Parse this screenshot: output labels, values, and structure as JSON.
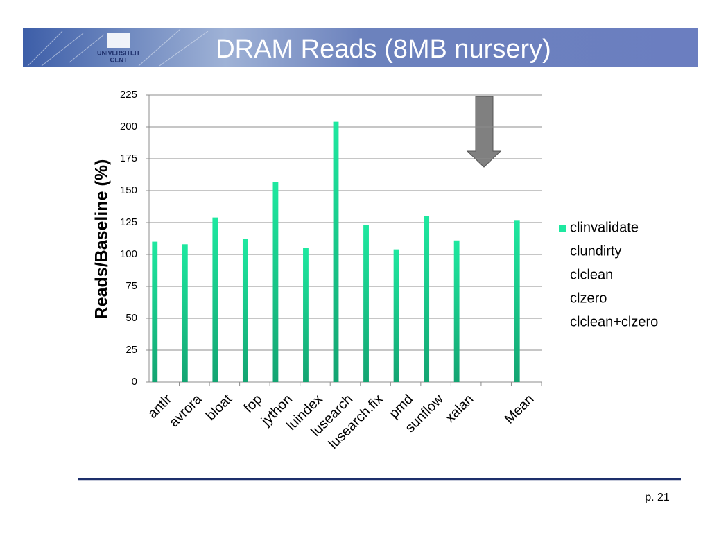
{
  "header": {
    "title": "DRAM Reads (8MB nursery)",
    "logo_line1": "UNIVERSITEIT",
    "logo_line2": "GENT"
  },
  "chart_data": {
    "type": "bar",
    "y_label": "Reads/Baseline (%)",
    "categories": [
      "antlr",
      "avrora",
      "bloat",
      "fop",
      "jython",
      "luindex",
      "lusearch",
      "lusearch.fix",
      "pmd",
      "sunflow",
      "xalan",
      null,
      "Mean"
    ],
    "series": [
      {
        "name": "clinvalidate",
        "color": "#1ee8a0",
        "values": [
          110,
          108,
          129,
          112,
          157,
          105,
          204,
          123,
          104,
          130,
          111,
          null,
          127
        ]
      },
      {
        "name": "clundirty",
        "values": [
          null,
          null,
          null,
          null,
          null,
          null,
          null,
          null,
          null,
          null,
          null,
          null,
          null
        ]
      },
      {
        "name": "clclean",
        "values": [
          null,
          null,
          null,
          null,
          null,
          null,
          null,
          null,
          null,
          null,
          null,
          null,
          null
        ]
      },
      {
        "name": "clzero",
        "values": [
          null,
          null,
          null,
          null,
          null,
          null,
          null,
          null,
          null,
          null,
          null,
          null,
          null
        ]
      },
      {
        "name": "clclean+clzero",
        "values": [
          null,
          null,
          null,
          null,
          null,
          null,
          null,
          null,
          null,
          null,
          null,
          null,
          null
        ]
      }
    ],
    "ylim": [
      0,
      225
    ],
    "yticks": [
      0,
      25,
      50,
      75,
      100,
      125,
      150,
      175,
      200,
      225
    ],
    "grid": true,
    "legend": "right"
  },
  "footer": {
    "page": "p. 21"
  }
}
